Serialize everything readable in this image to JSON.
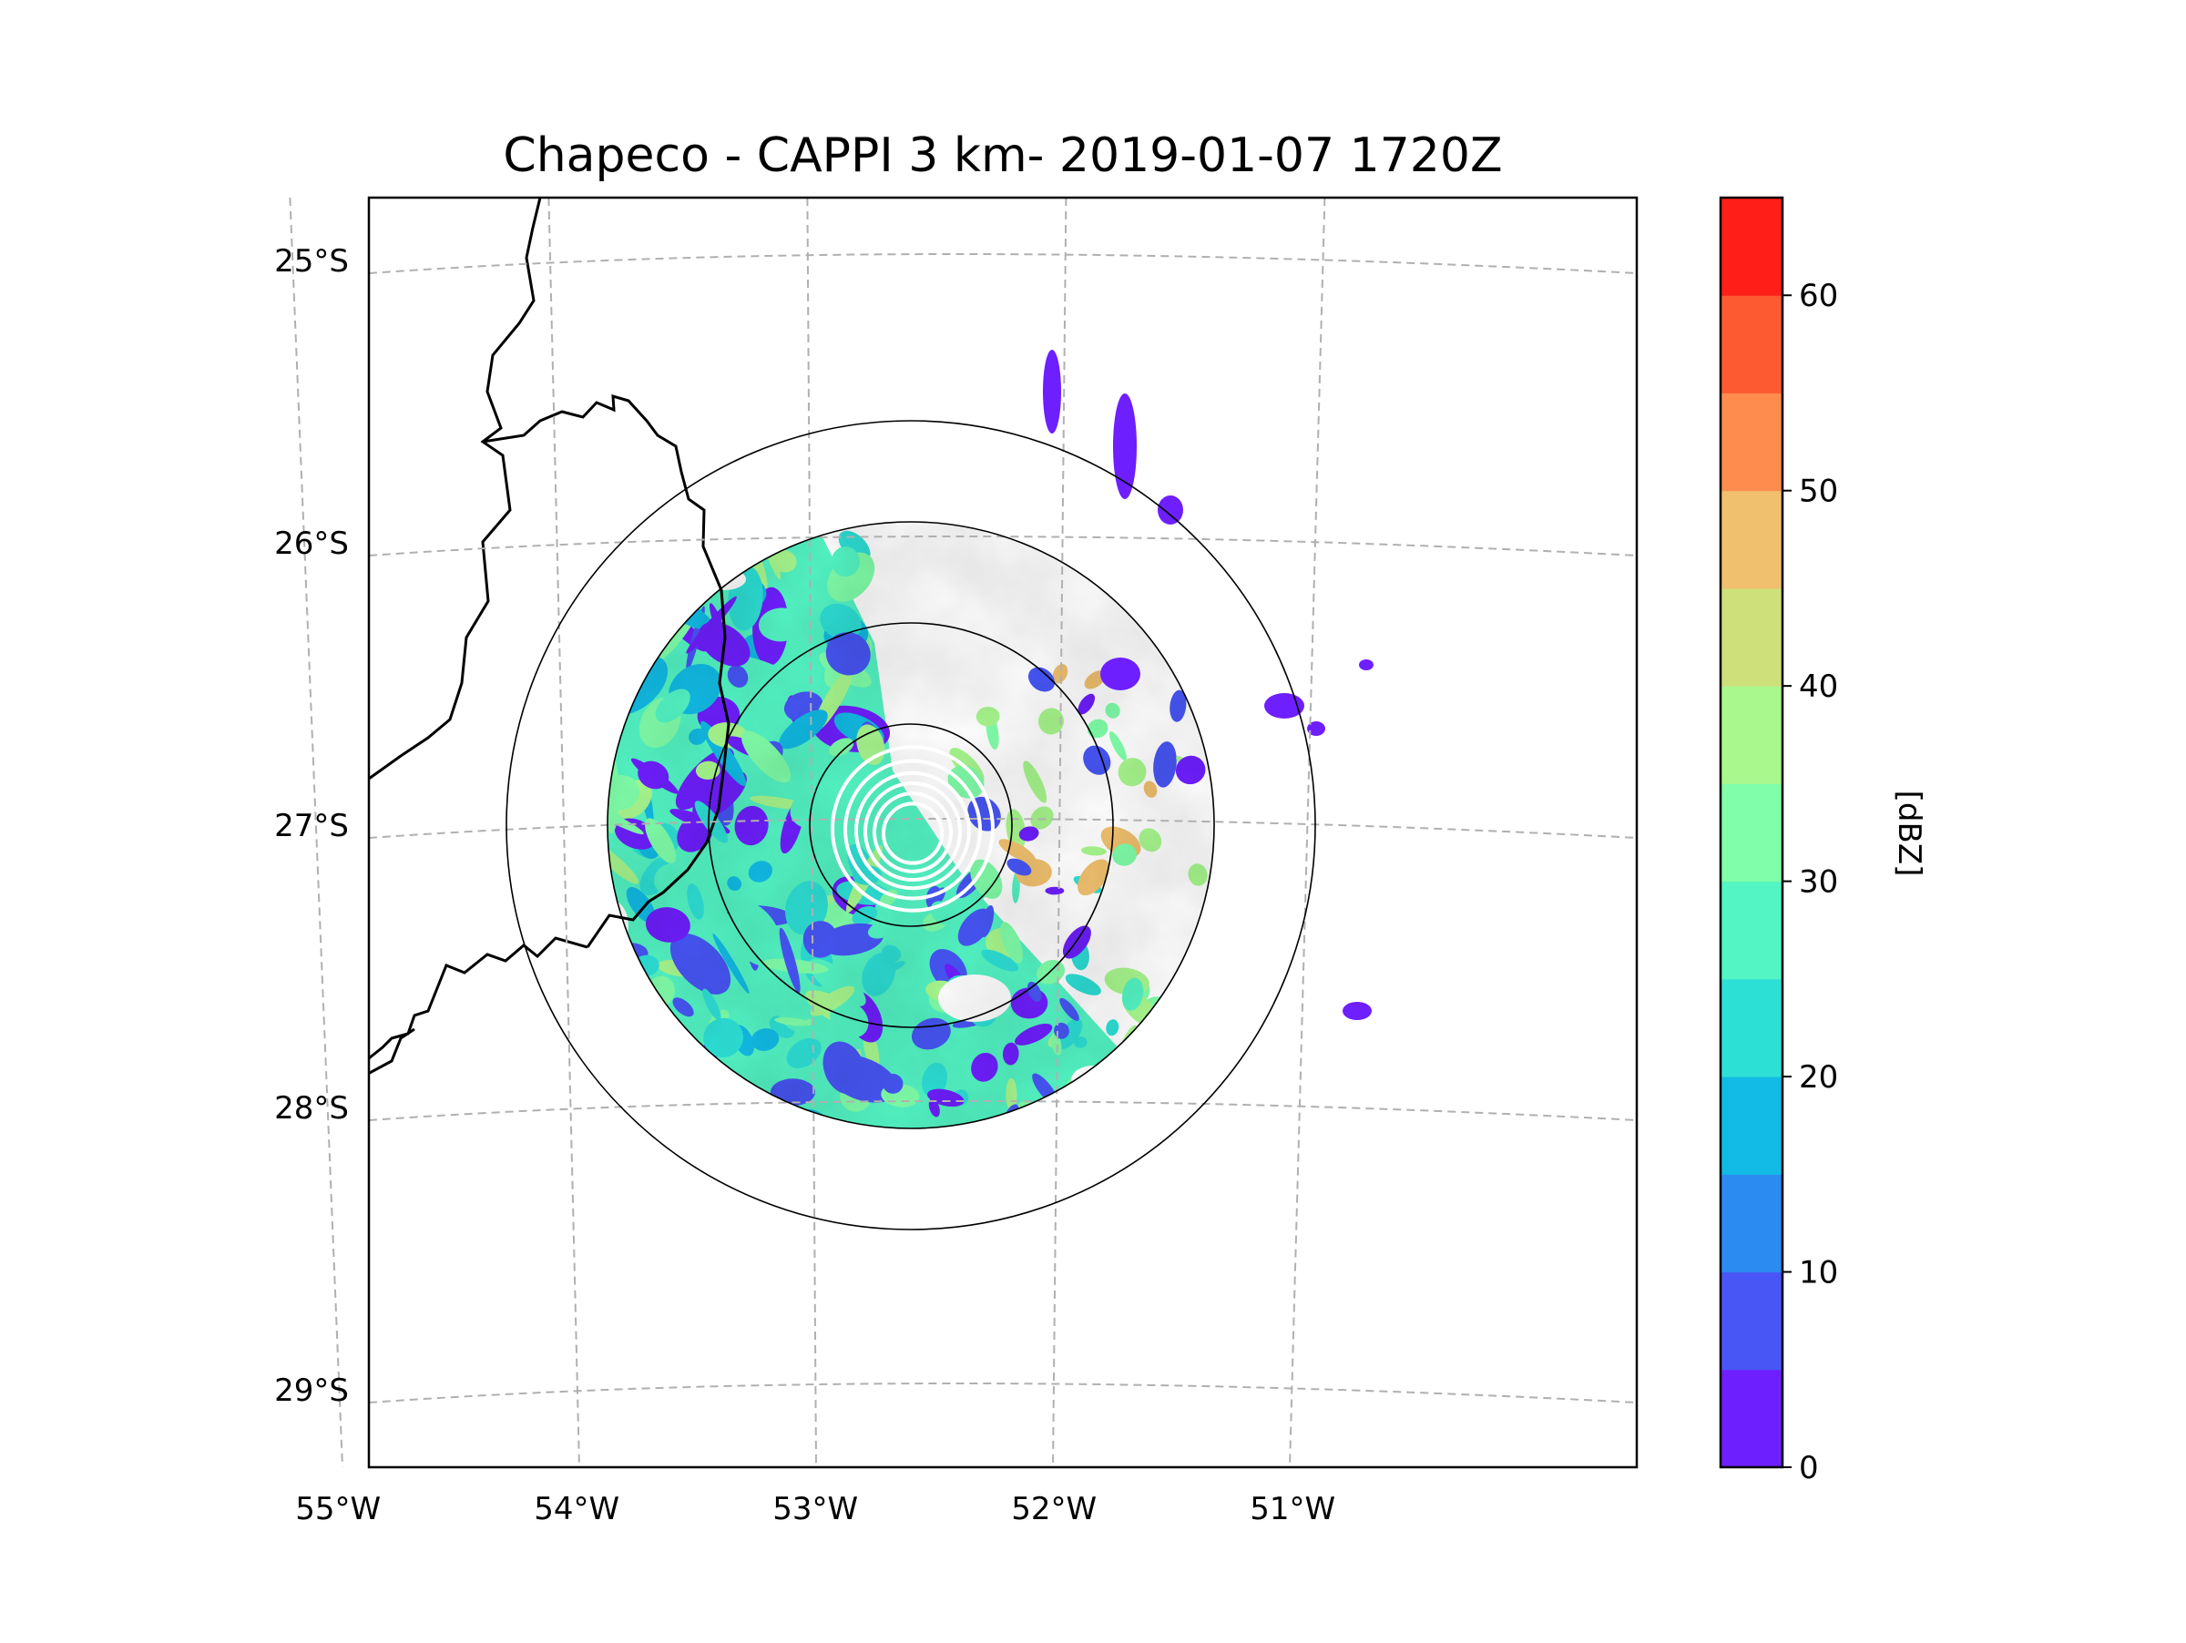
{
  "chart_data": {
    "type": "heatmap",
    "title": "Chapeco - CAPPI 3 km- 2019-01-07 1720Z",
    "xlabel": "",
    "ylabel": "",
    "x_ticks": [
      "55°W",
      "54°W",
      "53°W",
      "52°W",
      "51°W"
    ],
    "x_tick_values": [
      -55,
      -54,
      -53,
      -52,
      -51
    ],
    "y_ticks": [
      "25°S",
      "26°S",
      "27°S",
      "28°S",
      "29°S"
    ],
    "y_tick_values": [
      -25,
      -26,
      -27,
      -28,
      -29
    ],
    "grid": true,
    "radar_center": {
      "lon": -52.6,
      "lat": -27.0
    },
    "range_rings_km": [
      50,
      100,
      150,
      200
    ],
    "data_radius_km": 150,
    "colorbar": {
      "label": "[dBZ]",
      "ticks": [
        "0",
        "10",
        "20",
        "30",
        "40",
        "50",
        "60"
      ],
      "min": 0,
      "max": 65,
      "step": 5,
      "colors": [
        "#6e1ffd",
        "#4756f5",
        "#2b8bf0",
        "#11bbe5",
        "#2de0d6",
        "#53f5c4",
        "#80fea9",
        "#a8f88e",
        "#cde07a",
        "#f0c06e",
        "#fe8c4f",
        "#fe5a32",
        "#ff1f18"
      ]
    }
  }
}
